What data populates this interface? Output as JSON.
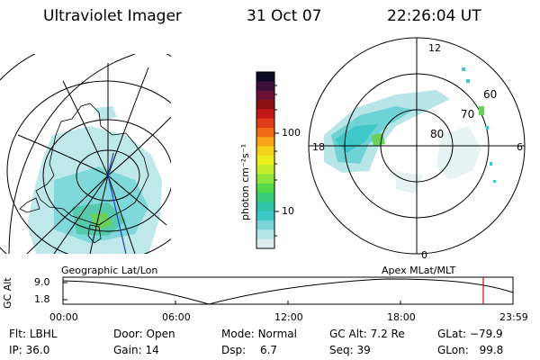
{
  "header": {
    "title": "Ultraviolet Imager",
    "date": "31 Oct 07",
    "time": "22:26:04 UT"
  },
  "colorbar": {
    "unit_label": "photon cm⁻²s⁻¹",
    "ticks": [
      "100",
      "10"
    ],
    "colors": [
      "#0a0a23",
      "#3b0f3a",
      "#6a1035",
      "#8c1010",
      "#c41818",
      "#e23b19",
      "#f06a14",
      "#f7a417",
      "#f4d31a",
      "#e9ef1c",
      "#c2ee2a",
      "#8fe43a",
      "#57d84b",
      "#37cf7a",
      "#2fc6a8",
      "#3fc8c8",
      "#7ad6d8",
      "#b6e5e6",
      "#dbeff0"
    ]
  },
  "geo_map": {
    "label": "Geographic Lat/Lon"
  },
  "polar_map": {
    "label": "Apex  MLat/MLT",
    "mlt_labels": {
      "top": "12",
      "left": "18",
      "right": "6",
      "bottom": "0"
    },
    "lat_labels": [
      "60",
      "70",
      "80"
    ]
  },
  "altitude_plot": {
    "y_label": "GC Alt",
    "y_ticks": [
      "9.0",
      "1.8"
    ],
    "x_ticks": [
      "00:00",
      "06:00",
      "12:00",
      "18:00",
      "23:59"
    ],
    "marker_color": "#e00000"
  },
  "info": {
    "filter_label": "Flt:",
    "filter_value": "LBHL",
    "ip_label": "IP:",
    "ip_value": "36.0",
    "door_label": "Door:",
    "door_value": "Open",
    "gain_label": "Gain:",
    "gain_value": "14",
    "mode_label": "Mode:",
    "mode_value": "Normal",
    "dsp_label": "Dsp:",
    "dsp_value": "6.7",
    "gcalt_label": "GC Alt:",
    "gcalt_value": "7.2 Re",
    "seq_label": "Seq:",
    "seq_value": "39",
    "glat_label": "GLat:",
    "glat_value": "−79.9",
    "glon_label": "GLon:",
    "glon_value": "99.8"
  }
}
